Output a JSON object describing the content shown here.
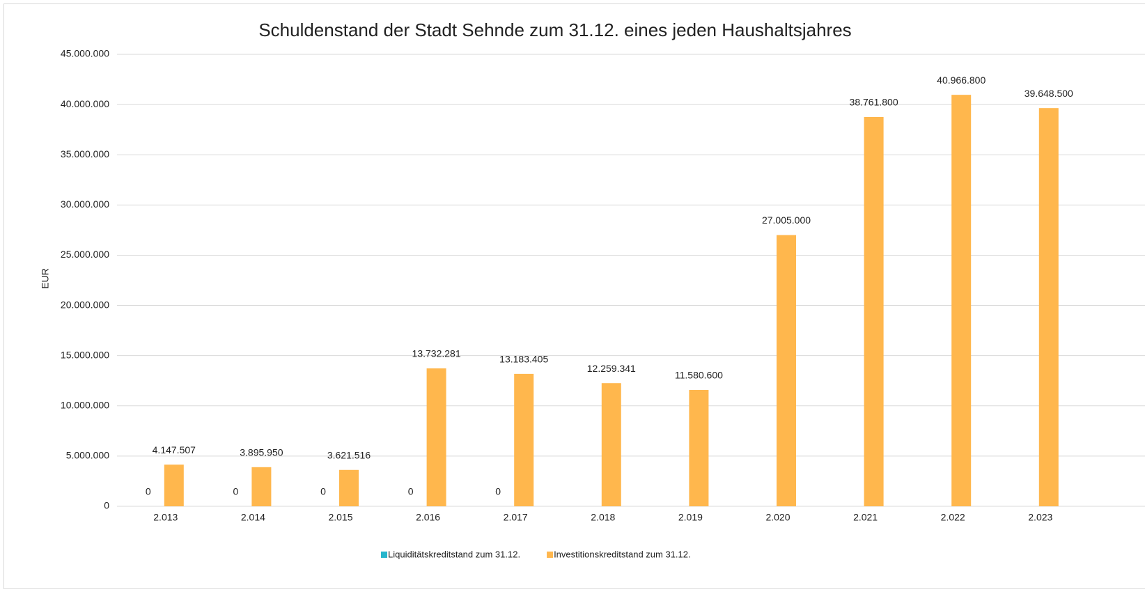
{
  "chart_data": {
    "type": "bar",
    "title": "Schuldenstand der Stadt Sehnde zum 31.12. eines jeden Haushaltsjahres",
    "y_label": "EUR",
    "categories": [
      "2.013",
      "2.014",
      "2.015",
      "2.016",
      "2.017",
      "2.018",
      "2.019",
      "2.020",
      "2.021",
      "2.022",
      "2.023"
    ],
    "series": [
      {
        "name": "Liquiditätskreditstand zum 31.12.",
        "color": "#26b5cc",
        "values": [
          0,
          0,
          0,
          0,
          0,
          null,
          null,
          null,
          null,
          null,
          null
        ]
      },
      {
        "name": "Investitionskreditstand zum 31.12.",
        "color": "#ffb74d",
        "values": [
          4147507,
          3895950,
          3621516,
          13732281,
          13183405,
          12259341,
          11580600,
          27005000,
          38761800,
          40966800,
          39648500
        ],
        "value_labels": [
          "4.147.507",
          "3.895.950",
          "3.621.516",
          "13.732.281",
          "13.183.405",
          "12.259.341",
          "11.580.600",
          "27.005.000",
          "38.761.800",
          "40.966.800",
          "39.648.500"
        ]
      }
    ],
    "ylim": [
      0,
      45000000
    ],
    "yticks": [
      0,
      {
        "value": 5000000,
        "label": "5.000.000"
      },
      {
        "value": 10000000,
        "label": "10.000.000"
      },
      {
        "value": 15000000,
        "label": "15.000.000"
      },
      {
        "value": 20000000,
        "label": "20.000.000"
      },
      {
        "value": 25000000,
        "label": "25.000.000"
      },
      {
        "value": 30000000,
        "label": "30.000.000"
      },
      {
        "value": 35000000,
        "label": "35.000.000"
      },
      {
        "value": 40000000,
        "label": "40.000.000"
      },
      {
        "value": 45000000,
        "label": "45.000.000"
      }
    ],
    "grid": true,
    "legend": "bottom"
  }
}
